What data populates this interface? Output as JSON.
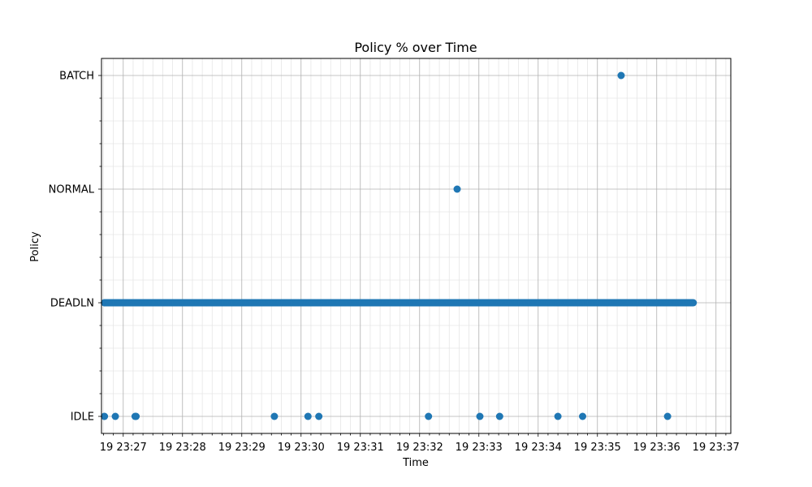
{
  "chart_data": {
    "type": "scatter",
    "title": "Policy % over Time",
    "xlabel": "Time",
    "ylabel": "Policy",
    "y_categories": [
      "IDLE",
      "DEADLN",
      "NORMAL",
      "BATCH"
    ],
    "x_ticks": [
      "19 23:27",
      "19 23:28",
      "19 23:29",
      "19 23:30",
      "19 23:31",
      "19 23:32",
      "19 23:33",
      "19 23:34",
      "19 23:35",
      "19 23:36",
      "19 23:37"
    ],
    "xlim": [
      "23:26:38",
      "23:37:15"
    ],
    "grid": true,
    "marker_color": "#1f77b4",
    "series": [
      {
        "policy": "DEADLN",
        "x_range": [
          "23:26:41",
          "23:36:37"
        ],
        "density": "continuous"
      },
      {
        "policy": "IDLE",
        "x": [
          "23:26:41",
          "23:26:52",
          "23:27:12",
          "23:27:13",
          "23:29:33",
          "23:30:07",
          "23:30:18",
          "23:32:09",
          "23:33:01",
          "23:33:21",
          "23:34:20",
          "23:34:45",
          "23:36:11"
        ]
      },
      {
        "policy": "NORMAL",
        "x": [
          "23:32:38"
        ]
      },
      {
        "policy": "BATCH",
        "x": [
          "23:35:24"
        ]
      }
    ]
  }
}
